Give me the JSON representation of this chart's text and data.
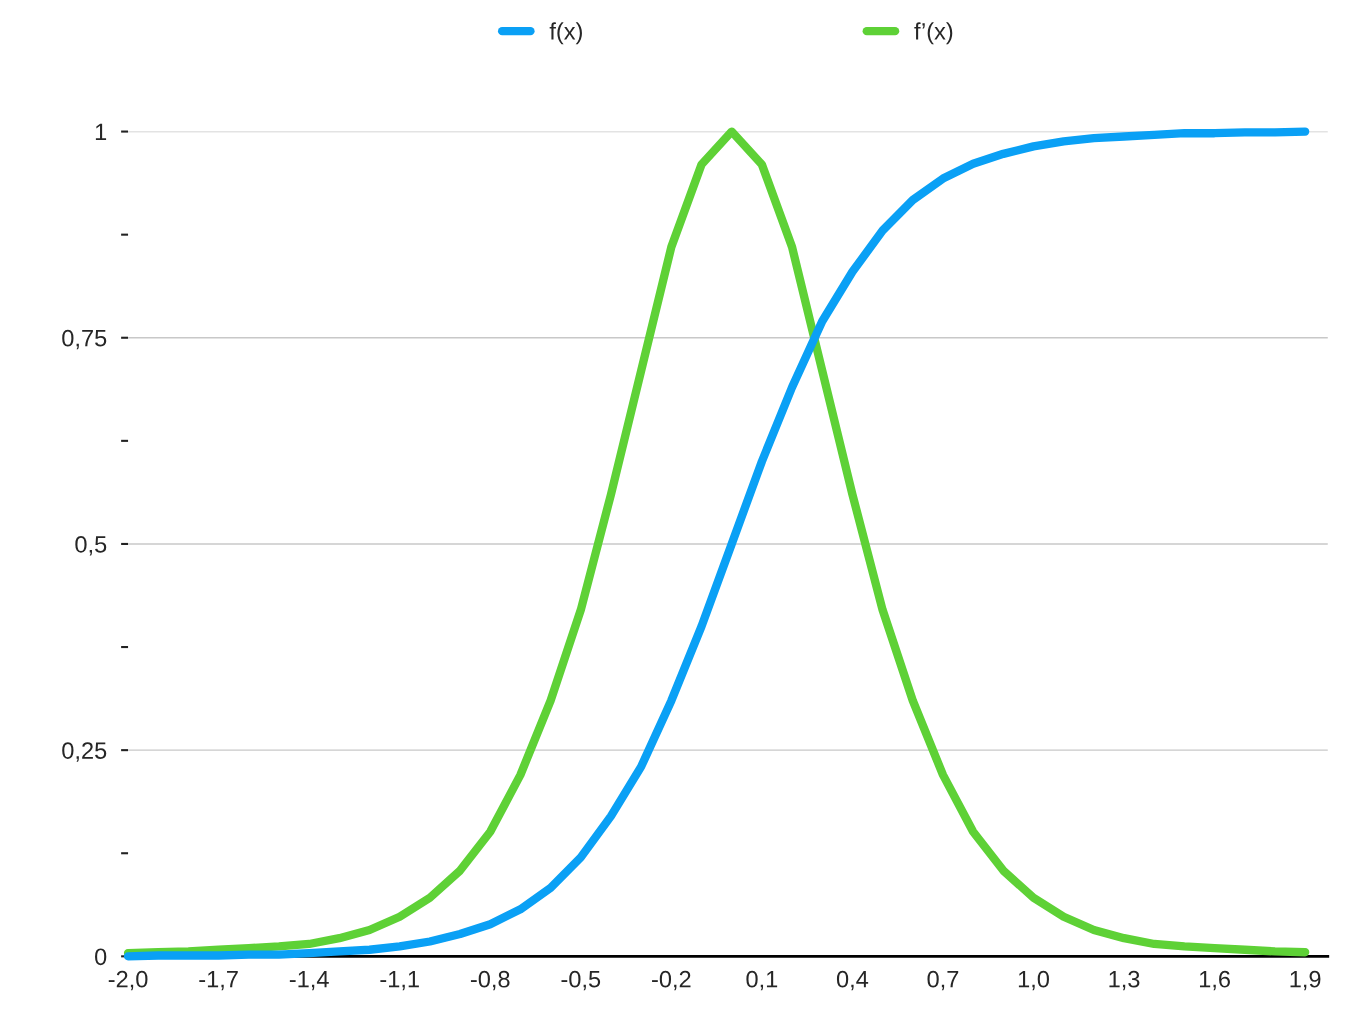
{
  "chart_data": {
    "type": "line",
    "categories": [
      "-2,0",
      null,
      null,
      "-1,7",
      null,
      null,
      "-1,4",
      null,
      null,
      "-1,1",
      null,
      null,
      "-0,8",
      null,
      null,
      "-0,5",
      null,
      null,
      "-0,2",
      null,
      null,
      "0,1",
      null,
      null,
      "0,4",
      null,
      null,
      "0,7",
      null,
      null,
      "1,0",
      null,
      null,
      "1,3",
      null,
      null,
      "1,6",
      null,
      null,
      "1,9"
    ],
    "series": [
      {
        "name": "f(x)",
        "color": "#0aa0f5",
        "values": [
          0.0,
          0.001,
          0.001,
          0.001,
          0.002,
          0.002,
          0.004,
          0.006,
          0.008,
          0.012,
          0.018,
          0.027,
          0.039,
          0.057,
          0.083,
          0.12,
          0.17,
          0.23,
          0.31,
          0.4,
          0.5,
          0.6,
          0.69,
          0.77,
          0.83,
          0.88,
          0.917,
          0.943,
          0.961,
          0.973,
          0.982,
          0.988,
          0.992,
          0.994,
          0.996,
          0.998,
          0.998,
          0.999,
          0.999,
          1.0
        ]
      },
      {
        "name": "f’(x)",
        "color": "#5ed136",
        "values": [
          0.004,
          0.005,
          0.006,
          0.008,
          0.01,
          0.012,
          0.015,
          0.022,
          0.032,
          0.048,
          0.071,
          0.104,
          0.151,
          0.22,
          0.31,
          0.42,
          0.56,
          0.71,
          0.86,
          0.96,
          1.0,
          0.96,
          0.86,
          0.71,
          0.56,
          0.42,
          0.31,
          0.22,
          0.151,
          0.104,
          0.071,
          0.048,
          0.032,
          0.022,
          0.015,
          0.012,
          0.01,
          0.008,
          0.006,
          0.005
        ]
      }
    ],
    "ylim": [
      0,
      1
    ],
    "yticks": [
      0,
      {
        "value": 0.125,
        "label": null
      },
      {
        "value": 0.25,
        "label": "0,25"
      },
      {
        "value": 0.375,
        "label": null
      },
      {
        "value": 0.5,
        "label": "0,5"
      },
      {
        "value": 0.625,
        "label": null
      },
      {
        "value": 0.75,
        "label": "0,75"
      },
      {
        "value": 0.875,
        "label": null
      },
      1
    ],
    "grid": "y",
    "legend": "top",
    "marker": "none",
    "line_style": "solid"
  }
}
